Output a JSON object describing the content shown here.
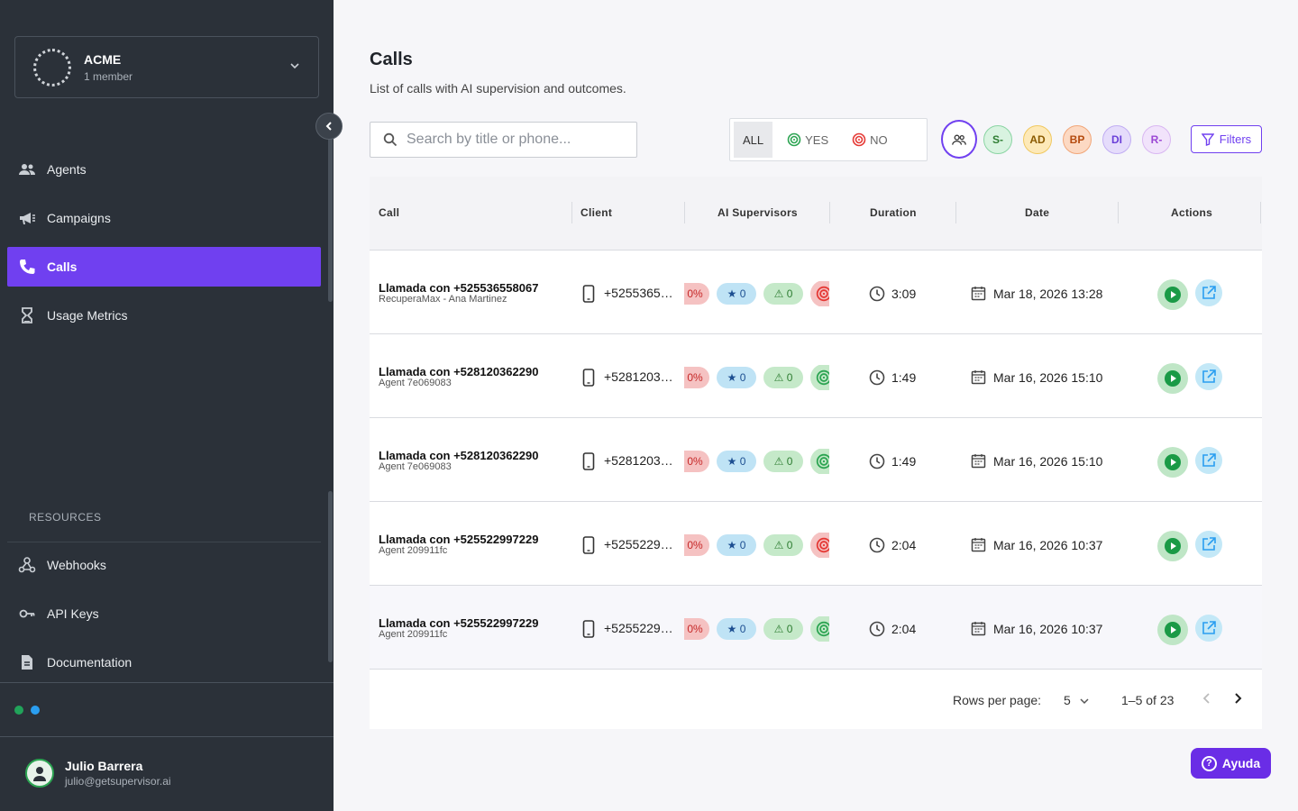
{
  "org": {
    "name": "ACME",
    "members": "1 member"
  },
  "nav": {
    "agents": "Agents",
    "campaigns": "Campaigns",
    "calls": "Calls",
    "usage": "Usage Metrics"
  },
  "resources": {
    "label": "RESOURCES",
    "webhooks": "Webhooks",
    "api_keys": "API Keys",
    "documentation": "Documentation"
  },
  "user": {
    "name": "Julio Barrera",
    "email": "julio@getsupervisor.ai"
  },
  "page": {
    "title": "Calls",
    "subtitle": "List of calls with AI supervision and outcomes."
  },
  "search": {
    "placeholder": "Search by title or phone..."
  },
  "segment": {
    "all": "ALL",
    "yes": "YES",
    "no": "NO"
  },
  "supervisor_filters": [
    {
      "label": "S-",
      "bg": "#d8f3e0",
      "border": "#8ad4a3",
      "color": "#2e7d32"
    },
    {
      "label": "AD",
      "bg": "#fde9b8",
      "border": "#f0c860",
      "color": "#8a5a00"
    },
    {
      "label": "BP",
      "bg": "#fcd9c3",
      "border": "#f1a679",
      "color": "#b44a0e"
    },
    {
      "label": "DI",
      "bg": "#e5dcfb",
      "border": "#c1adf3",
      "color": "#6a3fd8"
    },
    {
      "label": "R-",
      "bg": "#f1e3fb",
      "border": "#d9b7f2",
      "color": "#9b47d4"
    }
  ],
  "filters_label": "Filters",
  "table": {
    "headers": {
      "call": "Call",
      "client": "Client",
      "supervisors": "AI Supervisors",
      "duration": "Duration",
      "date": "Date",
      "actions": "Actions"
    },
    "rows": [
      {
        "title": "Llamada con +525536558067",
        "agent": "RecuperaMax - Ana Martinez",
        "client": "+5255365…",
        "pct": "0%",
        "stars": "★ 0",
        "warnings": "⚠ 0",
        "outcome": "no",
        "duration": "3:09",
        "date": "Mar 18, 2026 13:28"
      },
      {
        "title": "Llamada con +528120362290",
        "agent": "Agent 7e069083",
        "client": "+5281203…",
        "pct": "0%",
        "stars": "★ 0",
        "warnings": "⚠ 0",
        "outcome": "yes",
        "duration": "1:49",
        "date": "Mar 16, 2026 15:10"
      },
      {
        "title": "Llamada con +528120362290",
        "agent": "Agent 7e069083",
        "client": "+5281203…",
        "pct": "0%",
        "stars": "★ 0",
        "warnings": "⚠ 0",
        "outcome": "yes",
        "duration": "1:49",
        "date": "Mar 16, 2026 15:10"
      },
      {
        "title": "Llamada con +525522997229",
        "agent": "Agent 209911fc",
        "client": "+5255229…",
        "pct": "0%",
        "stars": "★ 0",
        "warnings": "⚠ 0",
        "outcome": "no",
        "duration": "2:04",
        "date": "Mar 16, 2026 10:37"
      },
      {
        "title": "Llamada con +525522997229",
        "agent": "Agent 209911fc",
        "client": "+5255229…",
        "pct": "0%",
        "stars": "★ 0",
        "warnings": "⚠ 0",
        "outcome": "yes",
        "duration": "2:04",
        "date": "Mar 16, 2026 10:37"
      }
    ]
  },
  "pagination": {
    "rows_label": "Rows per page:",
    "rows_value": "5",
    "range": "1–5 of 23"
  },
  "help_label": "Ayuda",
  "colors": {
    "accent": "#7040f0",
    "sidebar_bg": "#2b3139",
    "yes": "#2ca452",
    "no": "#e53935",
    "status_dot_green": "#21a35a",
    "status_dot_blue": "#2a9ef0"
  }
}
